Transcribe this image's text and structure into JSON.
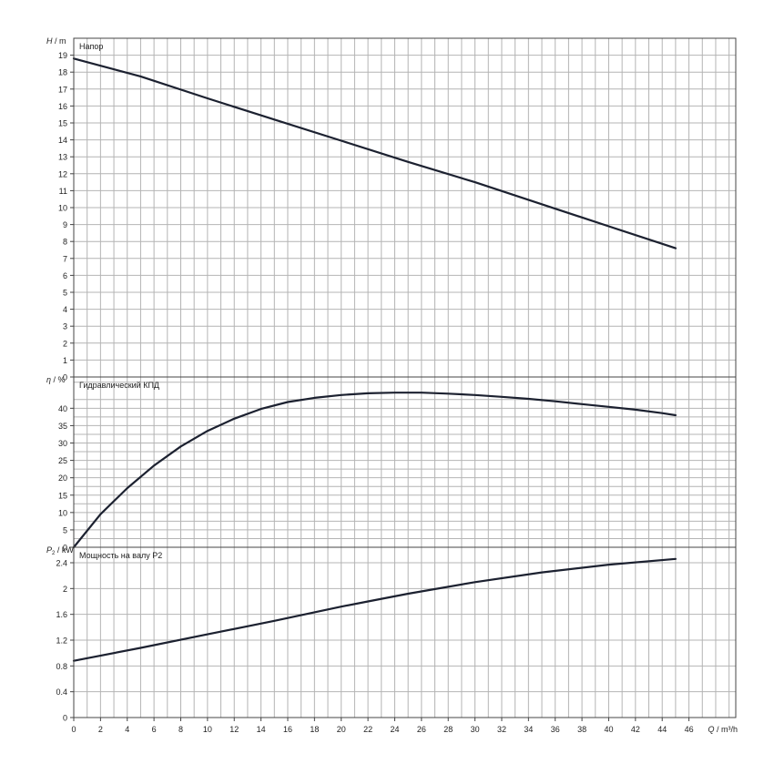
{
  "colors": {
    "grid": "#b4b4b4",
    "frame": "#444444",
    "curve": "#1c2130",
    "text": "#222222"
  },
  "chart_data": [
    {
      "type": "line",
      "panel": "head",
      "ylabel_symbol": "H",
      "ylabel_unit": "/ m",
      "annotation": "Напор",
      "ylim": [
        0,
        20
      ],
      "yticks": [
        0,
        1,
        2,
        3,
        4,
        5,
        6,
        7,
        8,
        9,
        10,
        11,
        12,
        13,
        14,
        15,
        16,
        17,
        18,
        19
      ],
      "grid": true,
      "series": [
        {
          "x": [
            0,
            5,
            10,
            15,
            20,
            25,
            30,
            35,
            40,
            45
          ],
          "y": [
            18.8,
            17.75,
            16.45,
            15.2,
            13.95,
            12.7,
            11.5,
            10.2,
            8.9,
            7.6
          ]
        }
      ]
    },
    {
      "type": "line",
      "panel": "efficiency",
      "ylabel_symbol": "η",
      "ylabel_unit": "/ %",
      "annotation": "Гидравлический КПД",
      "ylim": [
        0,
        49
      ],
      "yticks": [
        0,
        5,
        10,
        15,
        20,
        25,
        30,
        35,
        40
      ],
      "grid": true,
      "series": [
        {
          "x": [
            0,
            2,
            4,
            6,
            8,
            10,
            12,
            14,
            16,
            18,
            20,
            22,
            24,
            26,
            28,
            30,
            32,
            34,
            36,
            38,
            40,
            42,
            44,
            45
          ],
          "y": [
            0,
            9.5,
            17,
            23.5,
            29,
            33.5,
            37,
            39.8,
            41.8,
            43,
            43.8,
            44.3,
            44.5,
            44.5,
            44.2,
            43.8,
            43.3,
            42.7,
            42,
            41.2,
            40.4,
            39.6,
            38.6,
            38
          ]
        }
      ]
    },
    {
      "type": "line",
      "panel": "power",
      "ylabel_symbol": "P",
      "ylabel_sub": "2",
      "ylabel_unit": "/ kW",
      "annotation": "Мощность на валу P2",
      "xlabel_symbol": "Q",
      "xlabel_unit": "/ m³/h",
      "xlim": [
        0,
        49.5
      ],
      "xticks": [
        0,
        2,
        4,
        6,
        8,
        10,
        12,
        14,
        16,
        18,
        20,
        22,
        24,
        26,
        28,
        30,
        32,
        34,
        36,
        38,
        40,
        42,
        44,
        46
      ],
      "ylim": [
        0,
        2.64
      ],
      "yticks": [
        0,
        0.4,
        0.8,
        1.2,
        1.6,
        2,
        2.4
      ],
      "grid": true,
      "series": [
        {
          "x": [
            0,
            5,
            10,
            15,
            20,
            22,
            25,
            30,
            35,
            40,
            45
          ],
          "y": [
            0.88,
            1.08,
            1.29,
            1.5,
            1.72,
            1.8,
            1.92,
            2.1,
            2.25,
            2.37,
            2.46
          ]
        }
      ]
    }
  ]
}
